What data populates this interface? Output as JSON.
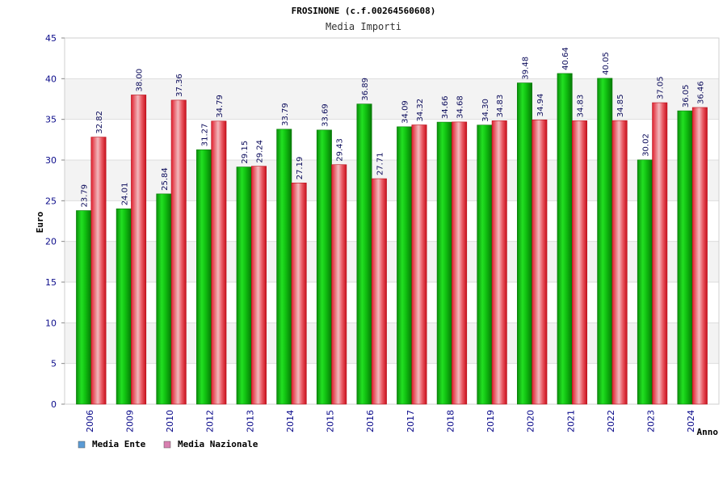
{
  "chart_data": {
    "type": "bar",
    "title": "FROSINONE (c.f.00264560608)",
    "subtitle": "Media Importi",
    "xlabel": "Anno",
    "ylabel": "Euro",
    "ylim": [
      0,
      45
    ],
    "yticks": [
      0,
      5,
      10,
      15,
      20,
      25,
      30,
      35,
      40,
      45
    ],
    "grid": true,
    "legend_position": "bottom-left",
    "categories": [
      "2006",
      "2009",
      "2010",
      "2012",
      "2013",
      "2014",
      "2015",
      "2016",
      "2017",
      "2018",
      "2019",
      "2020",
      "2021",
      "2022",
      "2023",
      "2024"
    ],
    "series": [
      {
        "name": "Media Ente",
        "legend_color": "#5b9bd5",
        "bar_color": "#11b811",
        "values": [
          23.79,
          24.01,
          25.84,
          31.27,
          29.15,
          33.79,
          33.69,
          36.89,
          34.09,
          34.66,
          34.3,
          39.48,
          40.64,
          40.05,
          30.02,
          36.05
        ],
        "labels": [
          "23.79",
          "24.01",
          "25.84",
          "31.27",
          "29.15",
          "33.79",
          "33.69",
          "36.89",
          "34.09",
          "34.66",
          "34.30",
          "39.48",
          "40.64",
          "40.05",
          "30.02",
          "36.05"
        ]
      },
      {
        "name": "Media Nazionale",
        "legend_color": "#d87fb0",
        "bar_color": "#e8303c",
        "values": [
          32.82,
          38.0,
          37.36,
          34.79,
          29.24,
          27.19,
          29.43,
          27.71,
          34.32,
          34.68,
          34.83,
          34.94,
          34.83,
          34.85,
          37.05,
          36.46
        ],
        "labels": [
          "32.82",
          "38.00",
          "37.36",
          "34.79",
          "29.24",
          "27.19",
          "29.43",
          "27.71",
          "34.32",
          "34.68",
          "34.83",
          "34.94",
          "34.83",
          "34.85",
          "37.05",
          "36.46"
        ]
      }
    ]
  }
}
